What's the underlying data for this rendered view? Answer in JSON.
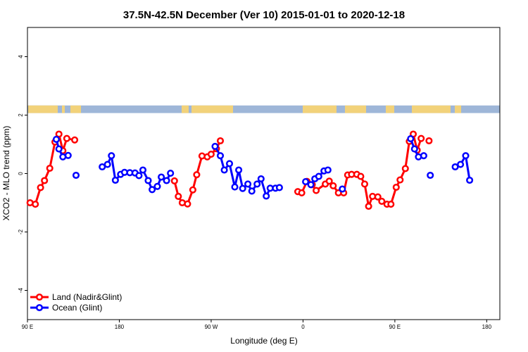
{
  "chart_data": {
    "type": "line",
    "title": "37.5N-42.5N December (Ver 10)   2015-01-01 to 2020-12-18",
    "xlabel": "Longitude (deg E)",
    "ylabel": "XCO2 - MLO trend (ppm)",
    "xlim": [
      90,
      450
    ],
    "ylim": [
      -5,
      5
    ],
    "xticks": [
      {
        "value": 90,
        "label": "90 E"
      },
      {
        "value": 160,
        "label": "180"
      },
      {
        "value": 230,
        "label": "90 W"
      },
      {
        "value": 300,
        "label": "0"
      },
      {
        "value": 370,
        "label": "90 E"
      },
      {
        "value": 440,
        "label": "180"
      }
    ],
    "yticks": [
      {
        "value": -4,
        "label": "-4"
      },
      {
        "value": -2,
        "label": "-2"
      },
      {
        "value": 0,
        "label": "0"
      },
      {
        "value": 2,
        "label": "2"
      },
      {
        "value": 4,
        "label": "4"
      }
    ],
    "map_band": {
      "y_range": [
        2.07,
        2.33
      ],
      "ocean_color": "#9eb6d8",
      "land_color": "#f2d27a"
    },
    "series": [
      {
        "name": "Land (Nadir&Glint)",
        "color": "#ff0000",
        "segments": [
          [
            [
              92,
              -1.0
            ],
            [
              96,
              -1.05
            ],
            [
              100,
              -0.48
            ],
            [
              103,
              -0.24
            ],
            [
              107,
              0.18
            ],
            [
              111,
              1.08
            ],
            [
              114,
              1.35
            ],
            [
              117,
              0.78
            ],
            [
              120,
              1.2
            ],
            [
              126,
              1.15
            ]
          ],
          [
            [
              202,
              -0.25
            ],
            [
              205,
              -0.78
            ],
            [
              208,
              -1.0
            ],
            [
              212,
              -1.04
            ],
            [
              216,
              -0.56
            ],
            [
              219,
              -0.04
            ],
            [
              223,
              0.6
            ],
            [
              227,
              0.57
            ],
            [
              230,
              0.66
            ],
            [
              234,
              0.85
            ],
            [
              237,
              1.12
            ]
          ],
          [
            [
              296,
              -0.62
            ],
            [
              299,
              -0.66
            ],
            [
              303,
              -0.27
            ],
            [
              307,
              -0.38
            ],
            [
              310,
              -0.58
            ],
            [
              317,
              -0.36
            ],
            [
              320,
              -0.26
            ],
            [
              323,
              -0.42
            ],
            [
              327,
              -0.66
            ],
            [
              331,
              -0.66
            ],
            [
              334,
              -0.05
            ],
            [
              337,
              -0.03
            ],
            [
              341,
              -0.03
            ],
            [
              344,
              -0.1
            ],
            [
              347,
              -0.36
            ],
            [
              350,
              -1.12
            ],
            [
              353,
              -0.78
            ],
            [
              357,
              -0.8
            ],
            [
              360,
              -0.95
            ],
            [
              364,
              -1.05
            ],
            [
              367,
              -1.05
            ],
            [
              371,
              -0.47
            ],
            [
              374,
              -0.22
            ],
            [
              378,
              0.17
            ],
            [
              381,
              1.1
            ],
            [
              384,
              1.35
            ],
            [
              387,
              0.8
            ],
            [
              390,
              1.2
            ]
          ],
          [
            [
              396,
              1.12
            ]
          ]
        ]
      },
      {
        "name": "Ocean (Glint)",
        "color": "#0000ff",
        "segments": [
          [
            [
              112,
              1.17
            ],
            [
              114,
              0.84
            ],
            [
              117,
              0.57
            ],
            [
              121,
              0.62
            ]
          ],
          [
            [
              127,
              -0.06
            ]
          ],
          [
            [
              147,
              0.23
            ],
            [
              151,
              0.31
            ],
            [
              154,
              0.61
            ],
            [
              157,
              -0.23
            ],
            [
              161,
              -0.03
            ],
            [
              164,
              0.04
            ],
            [
              168,
              0.03
            ],
            [
              172,
              0.02
            ],
            [
              175,
              -0.07
            ],
            [
              178,
              0.12
            ],
            [
              182,
              -0.24
            ],
            [
              185,
              -0.55
            ],
            [
              189,
              -0.44
            ],
            [
              192,
              -0.12
            ],
            [
              196,
              -0.24
            ],
            [
              199,
              0.01
            ]
          ],
          [
            [
              233,
              0.93
            ],
            [
              237,
              0.61
            ],
            [
              240,
              0.12
            ],
            [
              244,
              0.34
            ],
            [
              248,
              -0.46
            ],
            [
              251,
              0.12
            ],
            [
              254,
              -0.51
            ],
            [
              258,
              -0.36
            ],
            [
              261,
              -0.6
            ],
            [
              265,
              -0.36
            ],
            [
              268,
              -0.18
            ],
            [
              272,
              -0.77
            ],
            [
              275,
              -0.5
            ],
            [
              279,
              -0.5
            ],
            [
              282,
              -0.48
            ]
          ],
          [
            [
              302,
              -0.28
            ],
            [
              306,
              -0.38
            ],
            [
              309,
              -0.18
            ],
            [
              312,
              -0.1
            ],
            [
              316,
              0.09
            ],
            [
              319,
              0.12
            ]
          ],
          [
            [
              330,
              -0.53
            ]
          ],
          [
            [
              382,
              1.19
            ],
            [
              385,
              0.84
            ],
            [
              388,
              0.57
            ],
            [
              392,
              0.61
            ]
          ],
          [
            [
              397,
              -0.06
            ]
          ],
          [
            [
              416,
              0.23
            ],
            [
              420,
              0.31
            ],
            [
              424,
              0.61
            ],
            [
              427,
              -0.23
            ]
          ]
        ]
      }
    ],
    "legend": {
      "location": "bottom-left"
    }
  }
}
